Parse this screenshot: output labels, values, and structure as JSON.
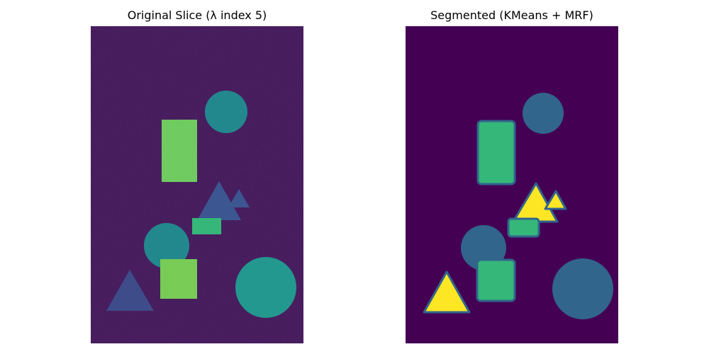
{
  "figure": {
    "panels": [
      {
        "title": "Original Slice (λ index 5)",
        "image_kind": "noisy-hyperspectral-slice",
        "colormap": "viridis",
        "background_color": "#461c5e"
      },
      {
        "title": "Segmented (KMeans + MRF)",
        "image_kind": "segmentation-label-map",
        "colormap": "viridis",
        "background_color": "#440154"
      }
    ],
    "colors": {
      "class_background": "#440154",
      "class_teal": "#23888e",
      "class_blue": "#31658c",
      "class_green": "#35b779",
      "class_yellow": "#fde725",
      "class_lime": "#77cc57",
      "class_slate": "#3e4c8a"
    }
  }
}
